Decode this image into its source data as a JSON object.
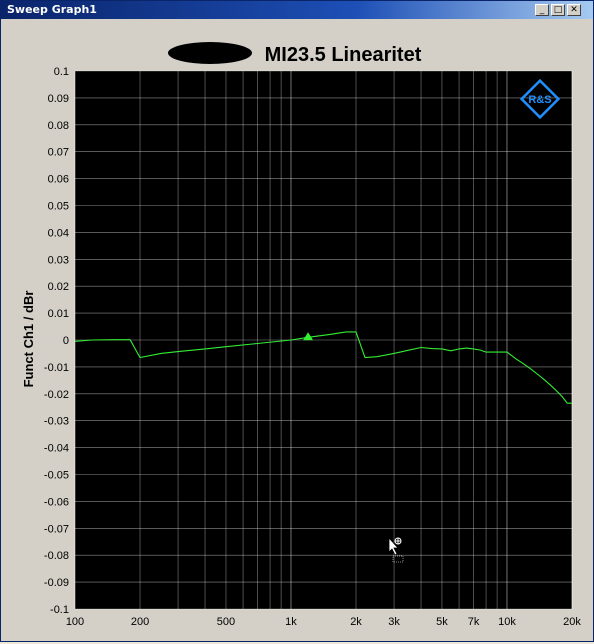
{
  "window": {
    "title": "Sweep Graph1",
    "buttons": {
      "minimize": "_",
      "maximize": "□",
      "close": "✕"
    }
  },
  "logo": {
    "text": "R&S",
    "color": "#1e90ff"
  },
  "colors": {
    "trace": "#33ee33",
    "plot_bg": "#000000",
    "grid": "#ffffff",
    "frame_bg": "#d4d0c8"
  },
  "chart_data": {
    "type": "line",
    "title": "MI23.5 Linearitet",
    "ylabel": "Funct Ch1 / dBr",
    "xlabel": "",
    "x_scale": "log",
    "xlim": [
      100,
      20000
    ],
    "ylim": [
      -0.1,
      0.1
    ],
    "grid": true,
    "x_tick_values": [
      100,
      200,
      500,
      1000,
      2000,
      3000,
      5000,
      7000,
      10000,
      20000
    ],
    "x_tick_labels": [
      "100",
      "200",
      "500",
      "1k",
      "2k",
      "3k",
      "5k",
      "7k",
      "10k",
      "20k"
    ],
    "y_tick_values": [
      0.1,
      0.09,
      0.08,
      0.07,
      0.06,
      0.05,
      0.04,
      0.03,
      0.02,
      0.01,
      0,
      -0.01,
      -0.02,
      -0.03,
      -0.04,
      -0.05,
      -0.06,
      -0.07,
      -0.08,
      -0.09,
      -0.1
    ],
    "y_tick_labels": [
      "0.1",
      "0.09",
      "0.08",
      "0.07",
      "0.06",
      "0.05",
      "0.04",
      "0.03",
      "0.02",
      "0.01",
      "0",
      "-0.01",
      "-0.02",
      "-0.03",
      "-0.04",
      "-0.05",
      "-0.06",
      "-0.07",
      "-0.08",
      "-0.09",
      "-0.1"
    ],
    "series": [
      {
        "x": [
          100,
          120,
          150,
          180,
          200,
          250,
          300,
          400,
          500,
          700,
          1000,
          1200,
          1500,
          1800,
          2000,
          2200,
          2500,
          3000,
          3500,
          4000,
          4500,
          5000,
          5500,
          6000,
          6500,
          7000,
          7500,
          8000,
          9000,
          10000,
          11000,
          12000,
          13000,
          14000,
          15000,
          16000,
          17000,
          18000,
          19000,
          20000
        ],
        "y": [
          -0.0005,
          0.0,
          0.0001,
          0.0001,
          -0.0065,
          -0.005,
          -0.0043,
          -0.0033,
          -0.0025,
          -0.0013,
          0.0,
          0.001,
          0.002,
          0.003,
          0.003,
          -0.0065,
          -0.0062,
          -0.005,
          -0.0038,
          -0.0028,
          -0.0032,
          -0.0033,
          -0.004,
          -0.0033,
          -0.003,
          -0.0033,
          -0.0037,
          -0.0045,
          -0.0045,
          -0.0045,
          -0.007,
          -0.009,
          -0.011,
          -0.013,
          -0.015,
          -0.017,
          -0.019,
          -0.021,
          -0.0235,
          -0.0235
        ]
      }
    ],
    "marker": {
      "x": 1200,
      "y": 0.001,
      "shape": "triangle"
    }
  }
}
